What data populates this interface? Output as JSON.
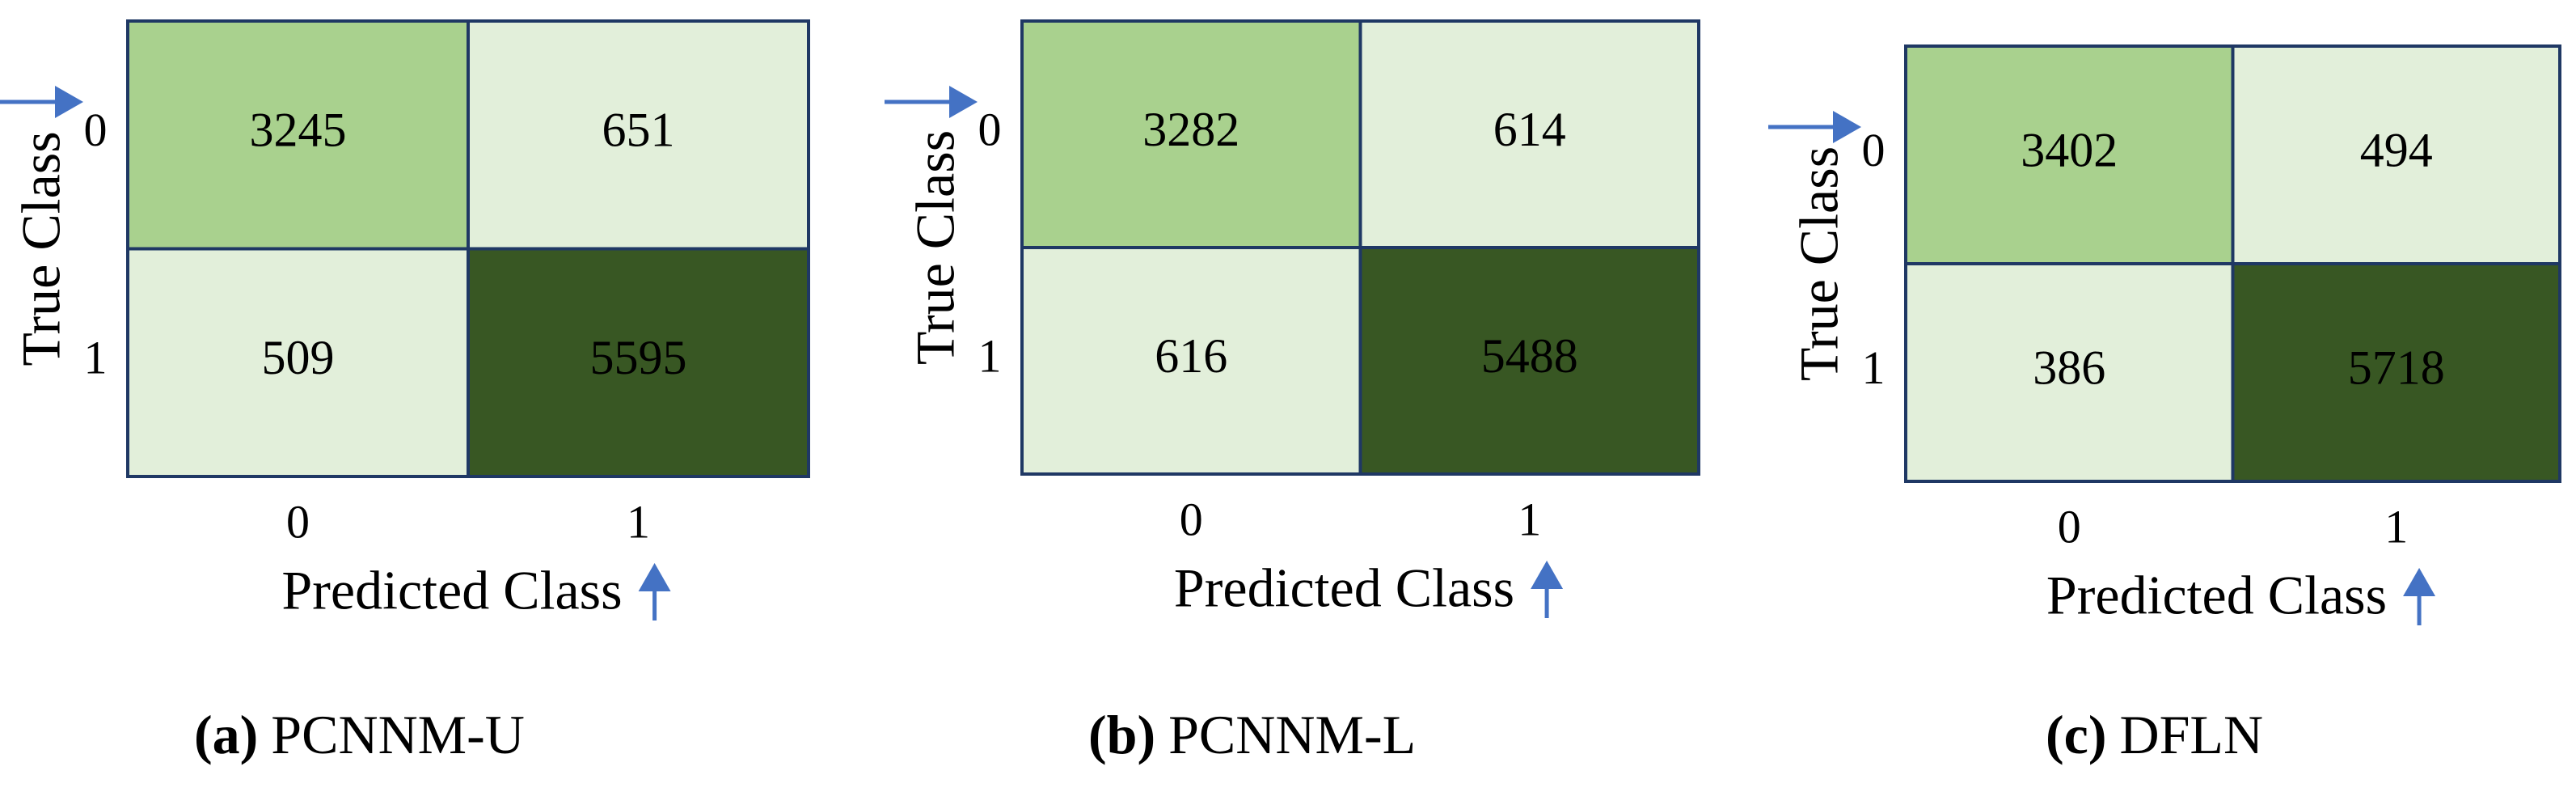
{
  "chart_data": [
    {
      "type": "heatmap",
      "x_categories": [
        "0",
        "1"
      ],
      "y_categories": [
        "0",
        "1"
      ],
      "values": [
        [
          3245,
          651
        ],
        [
          509,
          5595
        ]
      ],
      "colors": [
        [
          "#a9d18e",
          "#e2efda"
        ],
        [
          "#e2efda",
          "#385723"
        ]
      ],
      "xlabel": "Predicted Class",
      "ylabel": "True Class",
      "caption_label": "(a)",
      "caption": "PCNNM-U"
    },
    {
      "type": "heatmap",
      "x_categories": [
        "0",
        "1"
      ],
      "y_categories": [
        "0",
        "1"
      ],
      "values": [
        [
          3282,
          614
        ],
        [
          616,
          5488
        ]
      ],
      "colors": [
        [
          "#a9d18e",
          "#e2efda"
        ],
        [
          "#e2efda",
          "#385723"
        ]
      ],
      "xlabel": "Predicted Class",
      "ylabel": "True Class",
      "caption_label": "(b)",
      "caption": "PCNNM-L"
    },
    {
      "type": "heatmap",
      "x_categories": [
        "0",
        "1"
      ],
      "y_categories": [
        "0",
        "1"
      ],
      "values": [
        [
          3402,
          494
        ],
        [
          386,
          5718
        ]
      ],
      "colors": [
        [
          "#a9d18e",
          "#e2efda"
        ],
        [
          "#e2efda",
          "#385723"
        ]
      ],
      "xlabel": "Predicted Class",
      "ylabel": "True Class",
      "caption_label": "(c)",
      "caption": "DFLN"
    }
  ]
}
